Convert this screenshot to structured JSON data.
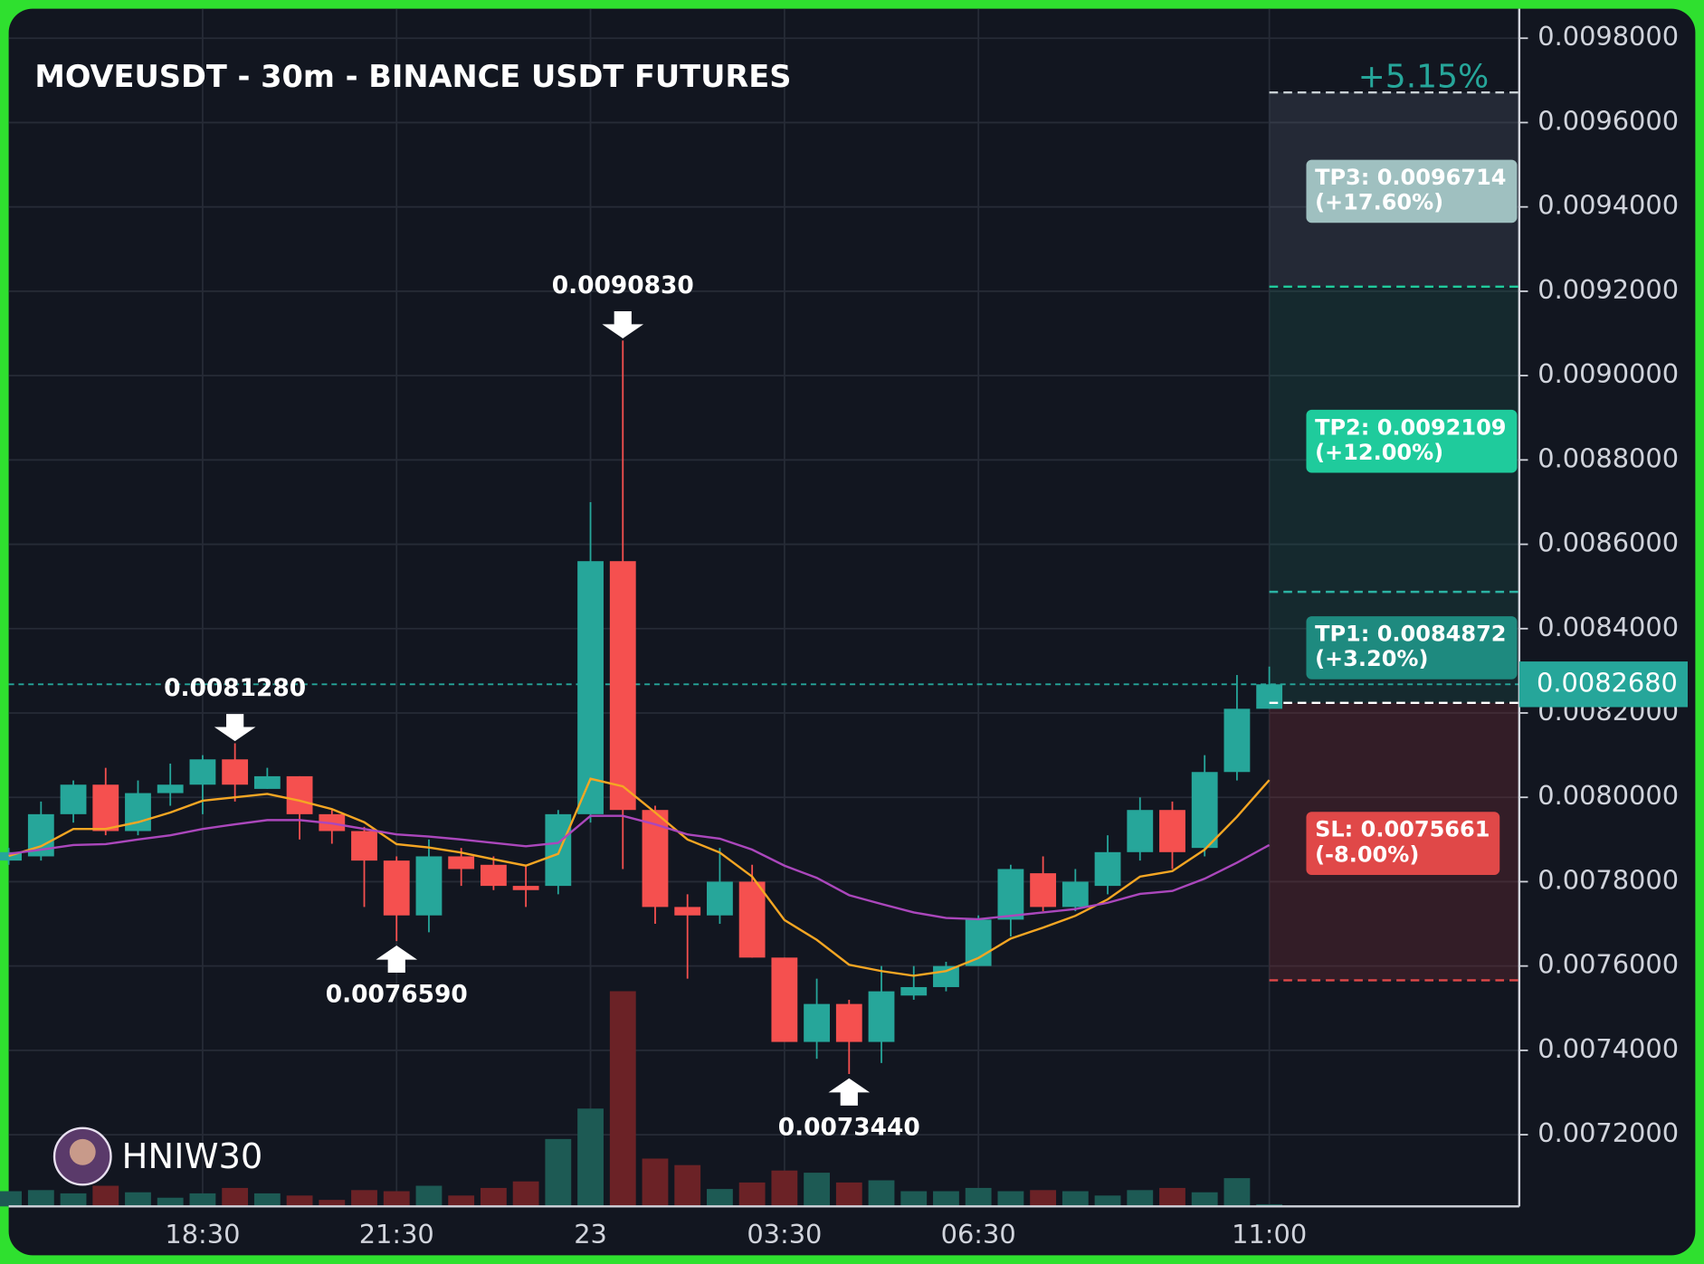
{
  "chart_data": {
    "type": "candlestick",
    "title": "MOVEUSDT - 30m - BINANCE USDT FUTURES",
    "categories": [
      null,
      null,
      null,
      null,
      null,
      null,
      "18:30",
      null,
      null,
      null,
      null,
      null,
      "21:30",
      null,
      null,
      null,
      null,
      null,
      "23",
      null,
      null,
      null,
      null,
      null,
      "03:30",
      null,
      null,
      null,
      null,
      null,
      "06:30",
      null,
      null,
      null,
      null,
      null,
      null,
      null,
      null,
      "11:00"
    ],
    "open": [
      0.00785,
      0.00786,
      0.00796,
      0.00803,
      0.00792,
      0.00801,
      0.00803,
      0.00809,
      0.00802,
      0.00805,
      0.00796,
      0.00792,
      0.00785,
      0.00772,
      0.00786,
      0.00784,
      0.00779,
      0.00779,
      0.00796,
      0.00856,
      0.00797,
      0.00774,
      0.00772,
      0.0078,
      0.00762,
      0.00742,
      0.00751,
      0.00742,
      0.00753,
      0.00755,
      0.0076,
      0.00771,
      0.00782,
      0.00774,
      0.00779,
      0.00787,
      0.00797,
      0.00788,
      0.00806,
      0.00821
    ],
    "high": [
      0.00788,
      0.00799,
      0.00804,
      0.00807,
      0.00804,
      0.00808,
      0.0081,
      0.008128,
      0.00807,
      0.00805,
      0.00797,
      0.00793,
      0.00786,
      0.0079,
      0.00788,
      0.00786,
      0.00784,
      0.00797,
      0.0087,
      0.009083,
      0.00798,
      0.00777,
      0.00788,
      0.00784,
      0.00762,
      0.00757,
      0.00752,
      0.0076,
      0.0076,
      0.00761,
      0.00772,
      0.00784,
      0.00786,
      0.00783,
      0.00791,
      0.008,
      0.00799,
      0.0081,
      0.00829,
      0.00831
    ],
    "low": [
      0.00784,
      0.00785,
      0.00794,
      0.00791,
      0.00791,
      0.00798,
      0.00796,
      0.00799,
      0.00802,
      0.0079,
      0.00789,
      0.00774,
      0.007659,
      0.00768,
      0.00779,
      0.00778,
      0.00774,
      0.00777,
      0.00794,
      0.00783,
      0.0077,
      0.00757,
      0.0077,
      0.00762,
      0.00742,
      0.00738,
      0.007344,
      0.00737,
      0.00752,
      0.00754,
      0.0076,
      0.00767,
      0.00773,
      0.00773,
      0.00777,
      0.00785,
      0.00783,
      0.00786,
      0.00804,
      0.00821
    ],
    "close": [
      0.00787,
      0.00796,
      0.00803,
      0.00792,
      0.00801,
      0.00803,
      0.00809,
      0.00803,
      0.00805,
      0.00796,
      0.00792,
      0.00785,
      0.00772,
      0.00786,
      0.00783,
      0.00779,
      0.00778,
      0.00796,
      0.00856,
      0.00797,
      0.00774,
      0.00772,
      0.0078,
      0.00762,
      0.00742,
      0.00751,
      0.00742,
      0.00754,
      0.00755,
      0.0076,
      0.00771,
      0.00783,
      0.00774,
      0.0078,
      0.00787,
      0.00797,
      0.00787,
      0.00806,
      0.00821,
      0.008268
    ],
    "volume": [
      14,
      15,
      12,
      19,
      13,
      8,
      12,
      17,
      12,
      10,
      6,
      15,
      14,
      19,
      10,
      17,
      23,
      62,
      90,
      198,
      44,
      38,
      16,
      22,
      33,
      31,
      22,
      24,
      14,
      14,
      17,
      14,
      15,
      14,
      10,
      15,
      17,
      13,
      26,
      2
    ],
    "vlim": [
      0,
      1102
    ],
    "up_color": "#26a69a",
    "down_color": "#f5504f",
    "up_volume_color": "#1d5a54",
    "down_volume_color": "#6b2226",
    "series": [
      {
        "color": "#f5a623",
        "values": [
          0.007861,
          0.007884,
          0.007925,
          0.007925,
          0.007941,
          0.007964,
          0.007992,
          0.008,
          0.008008,
          0.007992,
          0.007972,
          0.007941,
          0.007889,
          0.007881,
          0.007869,
          0.007853,
          0.007838,
          0.007866,
          0.008044,
          0.008026,
          0.007964,
          0.0079,
          0.007869,
          0.007812,
          0.007709,
          0.007662,
          0.007603,
          0.007588,
          0.007577,
          0.007588,
          0.007619,
          0.007665,
          0.007691,
          0.007719,
          0.007758,
          0.007812,
          0.007825,
          0.007876,
          0.007954,
          0.008041
        ]
      },
      {
        "color": "#ab47bc",
        "values": [
          0.007866,
          0.007876,
          0.007887,
          0.007889,
          0.0079,
          0.00791,
          0.007925,
          0.007936,
          0.007946,
          0.007946,
          0.007938,
          0.007925,
          0.007912,
          0.007907,
          0.0079,
          0.007892,
          0.007884,
          0.007892,
          0.007956,
          0.007956,
          0.007936,
          0.007912,
          0.007902,
          0.007876,
          0.007838,
          0.007809,
          0.007768,
          0.007747,
          0.007727,
          0.007714,
          0.007711,
          0.007719,
          0.007727,
          0.007735,
          0.00775,
          0.007771,
          0.007778,
          0.007807,
          0.007845,
          0.007887
        ]
      }
    ],
    "ylim": [
      0.00703,
      0.00987
    ],
    "yticks": [
      {
        "value": 0.0072,
        "label": "0.0072000"
      },
      {
        "value": 0.0074,
        "label": "0.0074000"
      },
      {
        "value": 0.0076,
        "label": "0.0076000"
      },
      {
        "value": 0.0078,
        "label": "0.0078000"
      },
      {
        "value": 0.008,
        "label": "0.0080000"
      },
      {
        "value": 0.0082,
        "label": "0.0082000"
      },
      {
        "value": 0.0084,
        "label": "0.0084000"
      },
      {
        "value": 0.0086,
        "label": "0.0086000"
      },
      {
        "value": 0.0088,
        "label": "0.0088000"
      },
      {
        "value": 0.009,
        "label": "0.0090000"
      },
      {
        "value": 0.0092,
        "label": "0.0092000"
      },
      {
        "value": 0.0094,
        "label": "0.0094000"
      },
      {
        "value": 0.0096,
        "label": "0.0096000"
      },
      {
        "value": 0.0098,
        "label": "0.0098000"
      }
    ],
    "grid": true,
    "last": {
      "value": 0.008268,
      "label": "0.0082680",
      "color": "#26a69a"
    },
    "annotations": [
      {
        "label": "0.0081280",
        "value": 0.008128,
        "at": 7,
        "side": "high"
      },
      {
        "label": "0.0090830",
        "value": 0.009083,
        "at": 19,
        "side": "high"
      },
      {
        "label": "0.0076590",
        "value": 0.007659,
        "at": 12,
        "side": "low"
      },
      {
        "label": "0.0073440",
        "value": 0.007344,
        "at": 26,
        "side": "low"
      }
    ],
    "trade": {
      "pnl": "+5.15%",
      "entry": 0.008224,
      "levels": [
        {
          "value": 0.0096714,
          "label": "TP3: 0.0096714",
          "sub": "(+17.60%)",
          "color": "#9fc0c0",
          "line": "#c8d0d4"
        },
        {
          "value": 0.0092109,
          "label": "TP2: 0.0092109",
          "sub": "(+12.00%)",
          "color": "#1fcb9c",
          "line": "#1fcb9c"
        },
        {
          "value": 0.0084872,
          "label": "TP1: 0.0084872",
          "sub": "(+3.20%)",
          "color": "#1e8a7f",
          "line": "#2bb3a3"
        },
        {
          "value": 0.0075661,
          "label": "SL: 0.0075661",
          "sub": "(-8.00%)",
          "color": "#e04848",
          "line": "#e04848"
        }
      ]
    },
    "watermark": "HNIW30"
  }
}
